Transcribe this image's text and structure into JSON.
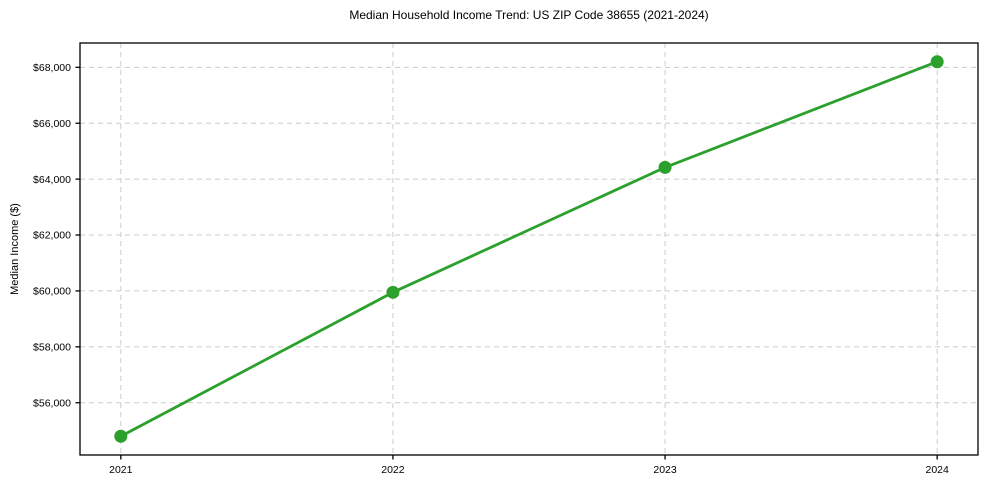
{
  "title": "Median Household Income Trend: US ZIP Code 38655 (2021-2024)",
  "chart_data": {
    "type": "line",
    "title": "Median Household Income Trend: US ZIP Code 38655 (2021-2024)",
    "xlabel": "",
    "ylabel": "Median Income ($)",
    "x": [
      2021,
      2022,
      2023,
      2024
    ],
    "series": [
      {
        "name": "Median Household Income",
        "values": [
          54800,
          59950,
          64420,
          68200
        ]
      }
    ],
    "xticks": [
      2021,
      2022,
      2023,
      2024
    ],
    "xtick_labels": [
      "2021",
      "2022",
      "2023",
      "2024"
    ],
    "yticks": [
      56000,
      58000,
      60000,
      62000,
      64000,
      66000,
      68000
    ],
    "ytick_labels": [
      "$56,000",
      "$58,000",
      "$60,000",
      "$62,000",
      "$64,000",
      "$66,000",
      "$68,000"
    ],
    "xlim": [
      2020.85,
      2024.15
    ],
    "ylim": [
      54130,
      68870
    ],
    "grid": true,
    "legend": "none",
    "colors": {
      "line": "#2ca02c",
      "marker": "#2ca02c",
      "grid": "#cccccc",
      "spine": "#000000",
      "text": "#000000",
      "background": "#ffffff"
    }
  }
}
